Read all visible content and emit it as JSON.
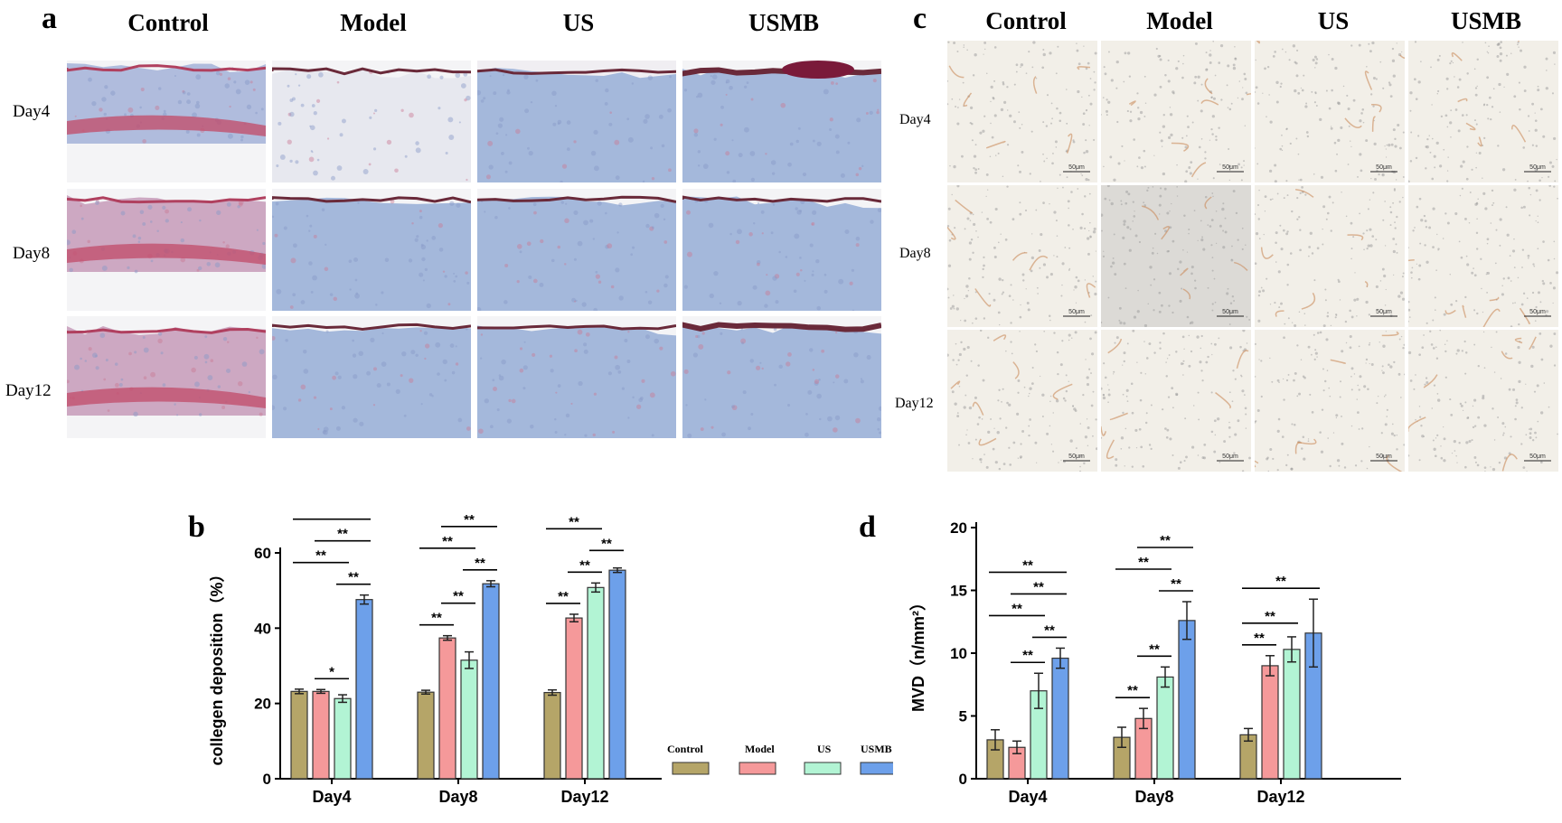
{
  "panel_a": {
    "letter": "a",
    "columns": [
      "Control",
      "Model",
      "US",
      "USMB"
    ],
    "rows": [
      "Day4",
      "Day8",
      "Day12"
    ]
  },
  "panel_c": {
    "letter": "c",
    "columns": [
      "Control",
      "Model",
      "US",
      "USMB"
    ],
    "rows": [
      "Day4",
      "Day8",
      "Day12"
    ],
    "scale_bar": "50μm"
  },
  "panel_b": {
    "letter": "b",
    "legend": [
      "Control",
      "Model",
      "US",
      "USMB"
    ]
  },
  "panel_d": {
    "letter": "d"
  },
  "colors": {
    "Control": "#b5a568",
    "Model": "#f5999a",
    "US": "#b2f4d4",
    "USMB": "#6da0ea",
    "masson_blue": "#9bb1d8",
    "masson_red": "#c2506e",
    "ihc_bg": "#f2efe8",
    "ihc_brown": "#c98a5a"
  },
  "chart_data": [
    {
      "id": "b",
      "type": "bar",
      "categories": [
        "Day4",
        "Day8",
        "Day12"
      ],
      "series": [
        {
          "name": "Control",
          "values": [
            23.2,
            23.0,
            22.9
          ],
          "errors": [
            0.6,
            0.5,
            0.7
          ]
        },
        {
          "name": "Model",
          "values": [
            23.2,
            37.4,
            42.7
          ],
          "errors": [
            0.5,
            0.6,
            1.0
          ]
        },
        {
          "name": "US",
          "values": [
            21.3,
            31.5,
            50.8
          ],
          "errors": [
            1.0,
            2.2,
            1.2
          ]
        },
        {
          "name": "USMB",
          "values": [
            47.6,
            51.8,
            55.4
          ],
          "errors": [
            1.2,
            0.8,
            0.6
          ]
        }
      ],
      "ylabel": "collegen deposition（%）",
      "xlabel": "",
      "ylim": [
        0,
        60
      ],
      "yticks": [
        0,
        20,
        40,
        60
      ],
      "annotations": [
        {
          "group": 0,
          "from": 0,
          "to": 2,
          "label": "**"
        },
        {
          "group": 0,
          "from": 1,
          "to": 2,
          "label": "*"
        },
        {
          "group": 0,
          "from": 0,
          "to": 3,
          "label": "**"
        },
        {
          "group": 0,
          "from": 1,
          "to": 3,
          "label": "**"
        },
        {
          "group": 0,
          "from": 2,
          "to": 3,
          "label": "**"
        },
        {
          "group": 1,
          "from": 0,
          "to": 1,
          "label": "**"
        },
        {
          "group": 1,
          "from": 1,
          "to": 2,
          "label": "**"
        },
        {
          "group": 1,
          "from": 0,
          "to": 2,
          "label": "**"
        },
        {
          "group": 1,
          "from": 2,
          "to": 3,
          "label": "**"
        },
        {
          "group": 1,
          "from": 1,
          "to": 3,
          "label": "**"
        },
        {
          "group": 1,
          "from": 0,
          "to": 3,
          "label": "**"
        },
        {
          "group": 2,
          "from": 0,
          "to": 1,
          "label": "**"
        },
        {
          "group": 2,
          "from": 1,
          "to": 2,
          "label": "**"
        },
        {
          "group": 2,
          "from": 2,
          "to": 3,
          "label": "**"
        },
        {
          "group": 2,
          "from": 0,
          "to": 2,
          "label": "**"
        },
        {
          "group": 2,
          "from": 1,
          "to": 3,
          "label": "**"
        },
        {
          "group": 2,
          "from": 0,
          "to": 3,
          "label": "**"
        }
      ]
    },
    {
      "id": "d",
      "type": "bar",
      "categories": [
        "Day4",
        "Day8",
        "Day12"
      ],
      "series": [
        {
          "name": "Control",
          "values": [
            3.1,
            3.3,
            3.5
          ],
          "errors": [
            0.8,
            0.8,
            0.5
          ]
        },
        {
          "name": "Model",
          "values": [
            2.5,
            4.8,
            9.0
          ],
          "errors": [
            0.5,
            0.8,
            0.8
          ]
        },
        {
          "name": "US",
          "values": [
            7.0,
            8.1,
            10.3
          ],
          "errors": [
            1.4,
            0.8,
            1.0
          ]
        },
        {
          "name": "USMB",
          "values": [
            9.6,
            12.6,
            11.6
          ],
          "errors": [
            0.8,
            1.5,
            2.7
          ]
        }
      ],
      "ylabel": "MVD（n/mm²）",
      "xlabel": "",
      "ylim": [
        0,
        20
      ],
      "yticks": [
        0,
        5,
        10,
        15,
        20
      ],
      "annotations": [
        {
          "group": 0,
          "from": 1,
          "to": 2,
          "label": "**"
        },
        {
          "group": 0,
          "from": 0,
          "to": 2,
          "label": "**"
        },
        {
          "group": 0,
          "from": 2,
          "to": 3,
          "label": "**"
        },
        {
          "group": 0,
          "from": 1,
          "to": 3,
          "label": "**"
        },
        {
          "group": 0,
          "from": 0,
          "to": 3,
          "label": "**"
        },
        {
          "group": 1,
          "from": 0,
          "to": 1,
          "label": "**"
        },
        {
          "group": 1,
          "from": 1,
          "to": 2,
          "label": "**"
        },
        {
          "group": 1,
          "from": 0,
          "to": 2,
          "label": "**"
        },
        {
          "group": 1,
          "from": 2,
          "to": 3,
          "label": "**"
        },
        {
          "group": 1,
          "from": 1,
          "to": 3,
          "label": "**"
        },
        {
          "group": 2,
          "from": 0,
          "to": 1,
          "label": "**"
        },
        {
          "group": 2,
          "from": 0,
          "to": 2,
          "label": "**"
        },
        {
          "group": 2,
          "from": 0,
          "to": 3,
          "label": "**"
        }
      ]
    }
  ]
}
